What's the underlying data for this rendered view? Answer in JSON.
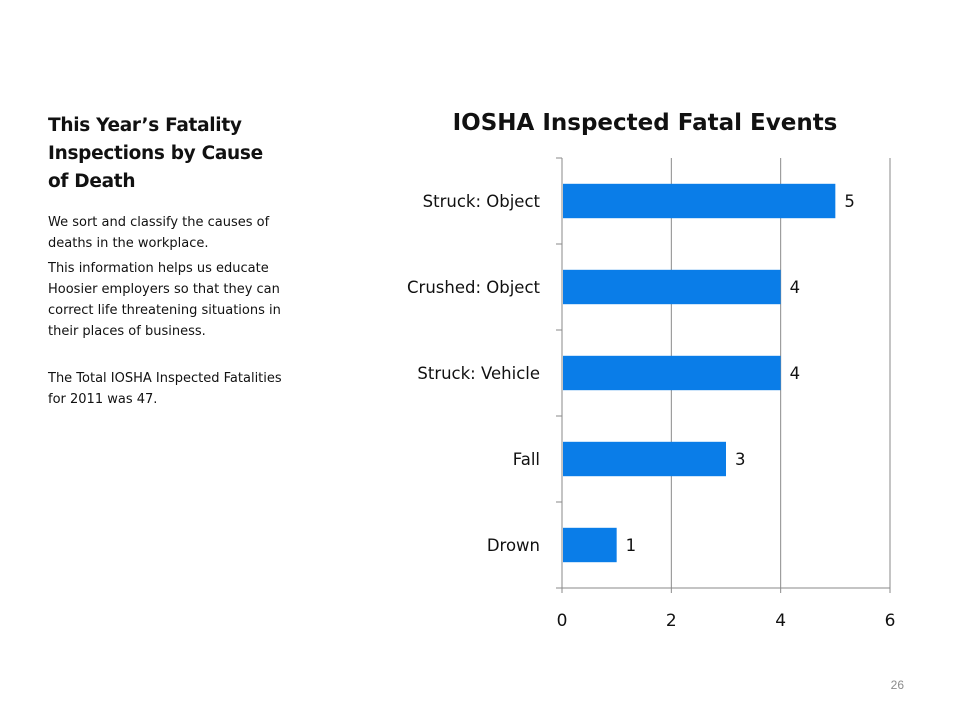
{
  "sidebar": {
    "title": "This Year’s Fatality Inspections by Cause of Death",
    "paragraphs": [
      "We sort and classify the causes of deaths in the workplace.",
      "This information helps us educate Hoosier employers so that they can correct life threatening situations in their places of business.",
      "The Total IOSHA Inspected Fatalities for 2011 was 47."
    ]
  },
  "page_number": "26",
  "chart_data": {
    "type": "bar",
    "orientation": "horizontal",
    "title": "IOSHA Inspected Fatal Events",
    "categories": [
      "Struck: Object",
      "Crushed: Object",
      "Struck: Vehicle",
      "Fall",
      "Drown"
    ],
    "values": [
      5,
      4,
      4,
      3,
      1
    ],
    "data_labels": [
      "5",
      "4",
      "4",
      "3",
      "1"
    ],
    "xlim": [
      0,
      6
    ],
    "xticks": [
      "0",
      "2",
      "4",
      "6"
    ],
    "grid": true,
    "legend": "none",
    "bar_color": "#0a7de8"
  }
}
